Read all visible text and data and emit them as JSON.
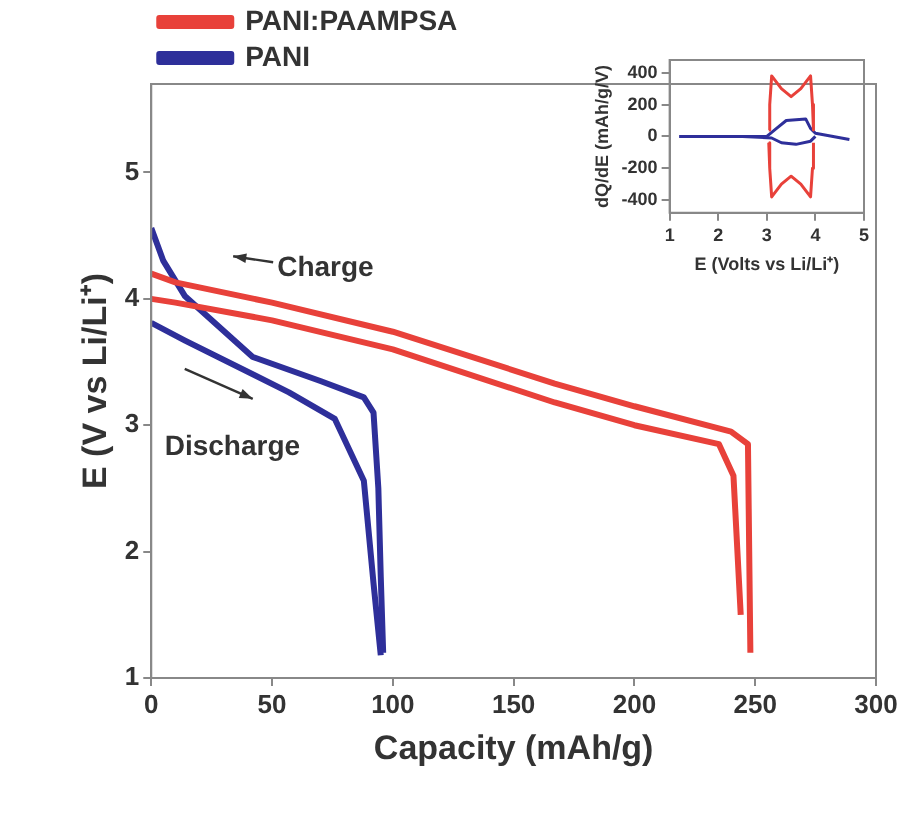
{
  "chart_data": [
    {
      "type": "line",
      "xlabel": "Capacity (mAh/g)",
      "ylabel": "E (V vs Li/Li⁺)",
      "xlim": [
        0,
        300
      ],
      "xticks": [
        0,
        50,
        100,
        150,
        200,
        250,
        300
      ],
      "ylim": [
        1,
        5.7
      ],
      "yticks": [
        1,
        2,
        3,
        4,
        5
      ],
      "grid": false,
      "legend": "top left",
      "marker": "none",
      "series": [
        {
          "name": "PANI:PAAMPSA",
          "color": "#e8413a",
          "x": [
            0,
            10,
            50,
            100,
            167,
            200,
            240,
            247,
            248
          ],
          "values": [
            4.2,
            4.13,
            3.97,
            3.74,
            3.33,
            3.15,
            2.95,
            2.85,
            1.2
          ]
        },
        {
          "color": "#e8413a",
          "x": [
            0,
            10,
            50,
            100,
            167,
            200,
            235,
            241,
            244
          ],
          "values": [
            4.0,
            3.97,
            3.83,
            3.6,
            3.18,
            3.0,
            2.85,
            2.6,
            1.5
          ]
        },
        {
          "name": "PANI",
          "color": "#2e2f9a",
          "x": [
            0,
            5,
            14,
            42,
            70,
            88,
            92,
            94,
            95,
            96
          ],
          "values": [
            4.56,
            4.3,
            4.02,
            3.54,
            3.35,
            3.22,
            3.1,
            2.5,
            1.8,
            1.2
          ]
        },
        {
          "color": "#2e2f9a",
          "x": [
            0,
            14,
            57,
            76,
            88,
            92,
            95
          ],
          "values": [
            3.81,
            3.67,
            3.26,
            3.05,
            2.56,
            1.75,
            1.18
          ]
        }
      ],
      "annotations": [
        "Charge",
        "Discharge"
      ]
    },
    {
      "type": "line",
      "xlabel": "E (Volts vs Li/Li⁺)",
      "ylabel": "dQ/dE (mAh/g/V)",
      "xlim": [
        1,
        5
      ],
      "xticks": [
        1,
        2,
        3,
        4,
        5
      ],
      "ylim": [
        -480,
        480
      ],
      "yticks": [
        -400,
        -200,
        0,
        200,
        400
      ],
      "grid": false,
      "marker": "none",
      "series": [
        {
          "color": "#e8413a",
          "x": [
            3.04,
            3.06,
            3.1,
            3.3,
            3.5,
            3.7,
            3.9,
            3.94,
            3.96
          ],
          "values": [
            40,
            200,
            380,
            300,
            250,
            300,
            380,
            200,
            40
          ]
        },
        {
          "color": "#e8413a",
          "x": [
            3.04,
            3.06,
            3.1,
            3.3,
            3.5,
            3.7,
            3.9,
            3.94,
            3.96
          ],
          "values": [
            -40,
            -200,
            -380,
            -300,
            -250,
            -300,
            -380,
            -200,
            -40
          ]
        },
        {
          "color": "#2e2f9a",
          "x": [
            1.2,
            3.0,
            3.2,
            3.4,
            3.8,
            3.9,
            4.0,
            4.7
          ],
          "values": [
            0,
            0,
            50,
            100,
            110,
            50,
            20,
            -20
          ]
        },
        {
          "color": "#2e2f9a",
          "x": [
            1.2,
            2.5,
            3.1,
            3.3,
            3.6,
            3.9,
            4.0
          ],
          "values": [
            0,
            0,
            -10,
            -40,
            -50,
            -30,
            0
          ]
        }
      ]
    }
  ]
}
